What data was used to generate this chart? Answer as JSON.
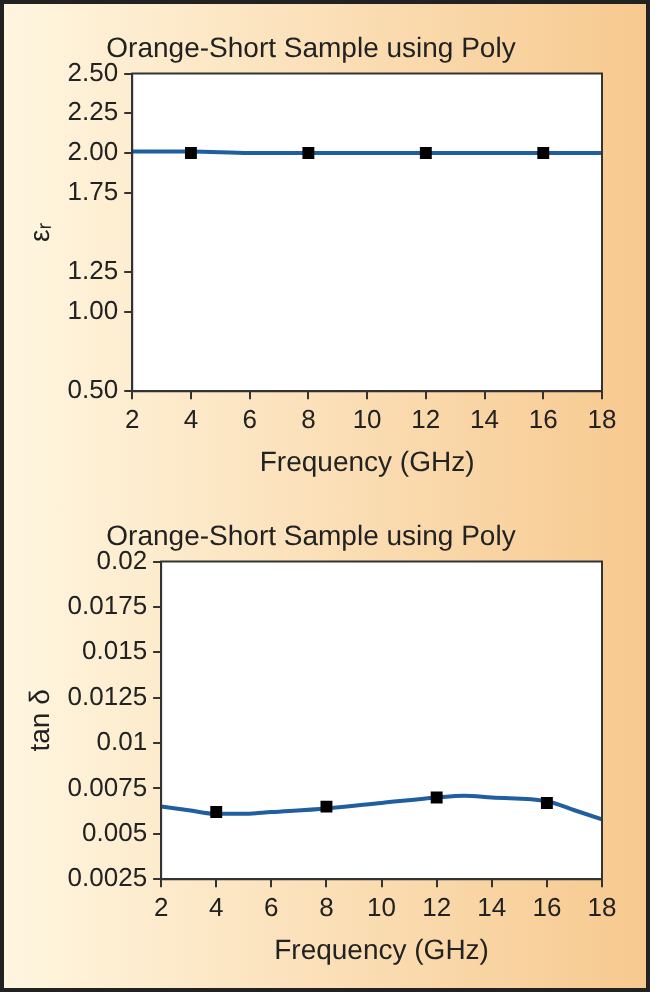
{
  "chart_data": [
    {
      "type": "line",
      "title": "Orange-Short Sample using Poly",
      "xlabel": "Frequency (GHz)",
      "ylabel": "εᵣ",
      "xlim": [
        2,
        18
      ],
      "xticks": [
        2,
        4,
        6,
        8,
        10,
        12,
        14,
        16,
        18
      ],
      "ylim": [
        0.5,
        2.5
      ],
      "yticks": [
        {
          "value": 0.5,
          "label": "0.50"
        },
        {
          "value": 1.0,
          "label": "1.00"
        },
        {
          "value": 1.25,
          "label": "1.25"
        },
        {
          "value": 1.75,
          "label": "1.75"
        },
        {
          "value": 2.0,
          "label": "2.00"
        },
        {
          "value": 2.25,
          "label": "2.25"
        },
        {
          "value": 2.5,
          "label": "2.50"
        }
      ],
      "grid": false,
      "legend": false,
      "series": [
        {
          "color": "#1f5f9f",
          "marker": "none",
          "x": [
            2,
            4,
            6,
            8,
            10,
            12,
            14,
            16,
            18
          ],
          "values": [
            2.01,
            2.01,
            2.0,
            2.0,
            2.0,
            2.0,
            2.0,
            2.0,
            2.0
          ]
        },
        {
          "type": "scatter",
          "color": "#000000",
          "marker": "square",
          "x": [
            4,
            8,
            12,
            16
          ],
          "values": [
            2.0,
            2.0,
            2.0,
            2.0
          ]
        }
      ]
    },
    {
      "type": "line",
      "title": "Orange-Short Sample using Poly",
      "xlabel": "Frequency (GHz)",
      "ylabel": "tan δ",
      "xlim": [
        2,
        18
      ],
      "xticks": [
        2,
        4,
        6,
        8,
        10,
        12,
        14,
        16,
        18
      ],
      "ylim": [
        0.0025,
        0.02
      ],
      "yticks": [
        0.0025,
        0.005,
        0.0075,
        0.01,
        0.0125,
        0.015,
        0.0175,
        0.02
      ],
      "grid": false,
      "legend": false,
      "series": [
        {
          "color": "#1f5f9f",
          "marker": "none",
          "x": [
            2,
            3,
            4,
            5,
            6,
            8,
            10,
            12,
            13,
            14,
            16,
            17,
            18
          ],
          "values": [
            0.0065,
            0.0063,
            0.0061,
            0.0061,
            0.0062,
            0.0064,
            0.0067,
            0.007,
            0.0071,
            0.007,
            0.0068,
            0.0063,
            0.0058
          ]
        },
        {
          "type": "scatter",
          "color": "#000000",
          "marker": "square",
          "x": [
            4,
            8,
            12,
            16
          ],
          "values": [
            0.0062,
            0.0065,
            0.007,
            0.0067
          ]
        }
      ]
    }
  ]
}
